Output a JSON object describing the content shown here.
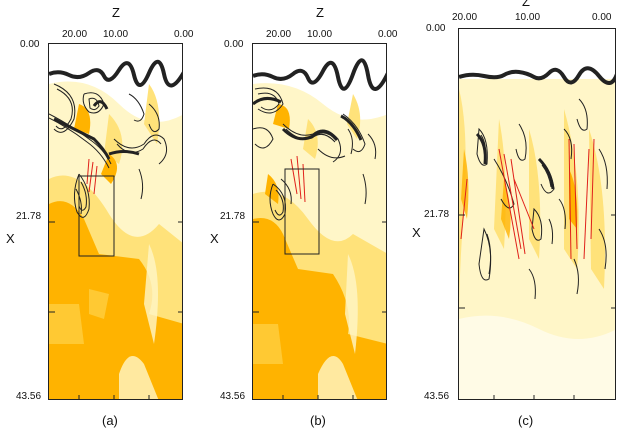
{
  "panels": [
    {
      "id": "a",
      "z_axis_title": "Z",
      "z_ticks": [
        "20.00",
        "10.00",
        "0.00"
      ],
      "x_axis_title": "X",
      "x_ticks": [
        "0.00",
        "21.78",
        "43.56"
      ],
      "caption": "(a)",
      "has_inset_box": true
    },
    {
      "id": "b",
      "z_axis_title": "Z",
      "z_ticks": [
        "20.00",
        "10.00",
        "0.00"
      ],
      "x_axis_title": "X",
      "x_ticks": [
        "0.00",
        "21.78",
        "43.56"
      ],
      "caption": "(b)",
      "has_inset_box": true
    },
    {
      "id": "c",
      "z_axis_title": "Z",
      "z_ticks": [
        "20.00",
        "10.00",
        "0.00"
      ],
      "x_axis_title": "X",
      "x_ticks": [
        "0.00",
        "21.78",
        "43.56"
      ],
      "caption": "(c)",
      "has_inset_box": false
    }
  ],
  "colors": {
    "background": "#ffffff",
    "field_pale": "#fff6c8",
    "field_light": "#ffe27a",
    "field_strong": "#ffb300",
    "contour": "#222222",
    "red_lines": "#e0201a"
  }
}
